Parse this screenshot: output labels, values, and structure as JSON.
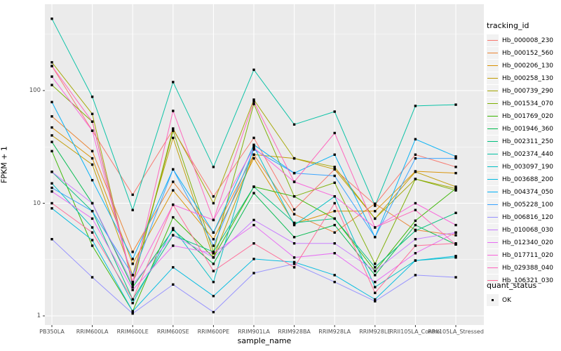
{
  "chart_data": {
    "type": "line",
    "title": "",
    "xlabel": "sample_name",
    "ylabel": "FPKM + 1",
    "y_scale": "log10",
    "y_ticks": [
      1,
      10,
      100
    ],
    "y_minor_ticks": [
      3.162,
      31.62,
      316.2
    ],
    "grid": true,
    "panel_bg": "#EBEBEB",
    "grid_color": "#FFFFFF",
    "point_marker": "black-square",
    "categories": [
      "PB350LA",
      "RRIM600LA",
      "RRIM600LE",
      "RRIM600SE",
      "RRIM600PE",
      "RRIM901LA",
      "RRIM928BA",
      "RRIM928LA",
      "RRIM928LE",
      "RRII105LA_Control",
      "RRII105LA_Stressed"
    ],
    "legend": {
      "title": "tracking_id",
      "position": "right"
    },
    "quant_legend": {
      "title": "quant_status",
      "items": [
        {
          "label": "OK",
          "marker": "black-square"
        }
      ]
    },
    "series": [
      {
        "name": "Hb_000008_230",
        "color": "#F8766D",
        "values": [
          165,
          44,
          11.9,
          45,
          11.5,
          38,
          8.8,
          20,
          9.7,
          27,
          21
        ]
      },
      {
        "name": "Hb_000152_560",
        "color": "#EA8331",
        "values": [
          59,
          29,
          3.7,
          15.5,
          5.5,
          27,
          8.0,
          5.5,
          9.9,
          5.8,
          5.2
        ]
      },
      {
        "name": "Hb_000206_130",
        "color": "#D89000",
        "values": [
          47,
          25,
          2.9,
          13,
          4.8,
          25,
          6.6,
          8.5,
          8.5,
          19.2,
          18.5
        ]
      },
      {
        "name": "Hb_000258_130",
        "color": "#C09B00",
        "values": [
          40,
          22,
          2.3,
          38,
          3.3,
          27,
          25,
          20,
          7.3,
          19,
          14
        ]
      },
      {
        "name": "Hb_000739_290",
        "color": "#A3A500",
        "values": [
          178,
          62,
          1.9,
          46,
          10,
          83,
          25,
          21,
          7.3,
          16.4,
          13.5
        ]
      },
      {
        "name": "Hb_001534_070",
        "color": "#7CAE00",
        "values": [
          112,
          53,
          1.9,
          44,
          3.7,
          76,
          11.5,
          15.2,
          2.9,
          16.4,
          13
        ]
      },
      {
        "name": "Hb_001769_020",
        "color": "#39B600",
        "values": [
          29,
          4.2,
          1.1,
          7.5,
          3.3,
          14,
          11.5,
          7.3,
          2.5,
          7.0,
          13.5
        ]
      },
      {
        "name": "Hb_001946_360",
        "color": "#00BB4E",
        "values": [
          35,
          10,
          1.8,
          5.8,
          2.9,
          12.3,
          5.0,
          6.4,
          2.3,
          6.4,
          4.3
        ]
      },
      {
        "name": "Hb_002311_250",
        "color": "#00BF7D",
        "values": [
          19,
          8.5,
          1.4,
          5.2,
          3.7,
          14,
          6.7,
          7.3,
          2.7,
          5.7,
          8.2
        ]
      },
      {
        "name": "Hb_002374_440",
        "color": "#00C1A3",
        "values": [
          434,
          88,
          8.7,
          119,
          21,
          153,
          50,
          65,
          9.5,
          73,
          75
        ]
      },
      {
        "name": "Hb_003097_190",
        "color": "#00BFC4",
        "values": [
          15,
          6.1,
          1.3,
          6.0,
          2.0,
          32,
          6.4,
          11.5,
          1.8,
          3.1,
          3.3
        ]
      },
      {
        "name": "Hb_003688_200",
        "color": "#00BAE0",
        "values": [
          9,
          4.7,
          1.1,
          2.7,
          1.5,
          3.2,
          3.0,
          2.3,
          1.4,
          3.1,
          3.4
        ]
      },
      {
        "name": "Hb_004374_050",
        "color": "#00B0F6",
        "values": [
          79,
          16,
          3.2,
          20,
          5.5,
          33,
          18.5,
          27,
          5.0,
          37,
          26
        ]
      },
      {
        "name": "Hb_005228_100",
        "color": "#35A2FF",
        "values": [
          13.7,
          8.5,
          2.3,
          20,
          4.2,
          30,
          18.5,
          17.5,
          5.0,
          25,
          25
        ]
      },
      {
        "name": "Hb_006816_120",
        "color": "#9590FF",
        "values": [
          4.8,
          2.2,
          1.05,
          1.9,
          1.08,
          2.4,
          2.9,
          2.0,
          1.35,
          2.3,
          2.2
        ]
      },
      {
        "name": "Hb_010068_030",
        "color": "#C77CFF",
        "values": [
          19,
          10,
          1.9,
          5.2,
          3.3,
          7.1,
          4.4,
          4.4,
          2.5,
          4.8,
          5.5
        ]
      },
      {
        "name": "Hb_012340_020",
        "color": "#E76BF3",
        "values": [
          12.7,
          7.3,
          1.7,
          4.2,
          3.6,
          6.4,
          3.3,
          3.6,
          2.0,
          3.6,
          5.5
        ]
      },
      {
        "name": "Hb_017711_020",
        "color": "#FA62DB",
        "values": [
          133,
          44,
          2.0,
          9.7,
          7.1,
          31,
          15.5,
          11.5,
          6.1,
          10,
          6.4
        ]
      },
      {
        "name": "Hb_029388_040",
        "color": "#FF62BC",
        "values": [
          165,
          53,
          2.0,
          66,
          7.1,
          80,
          15.5,
          42,
          6.1,
          8.7,
          4.3
        ]
      },
      {
        "name": "Hb_106321_030",
        "color": "#FF6A98",
        "values": [
          10,
          5.5,
          1.4,
          9.7,
          2.5,
          4.4,
          2.7,
          10,
          1.6,
          4.2,
          4.4
        ]
      }
    ]
  }
}
